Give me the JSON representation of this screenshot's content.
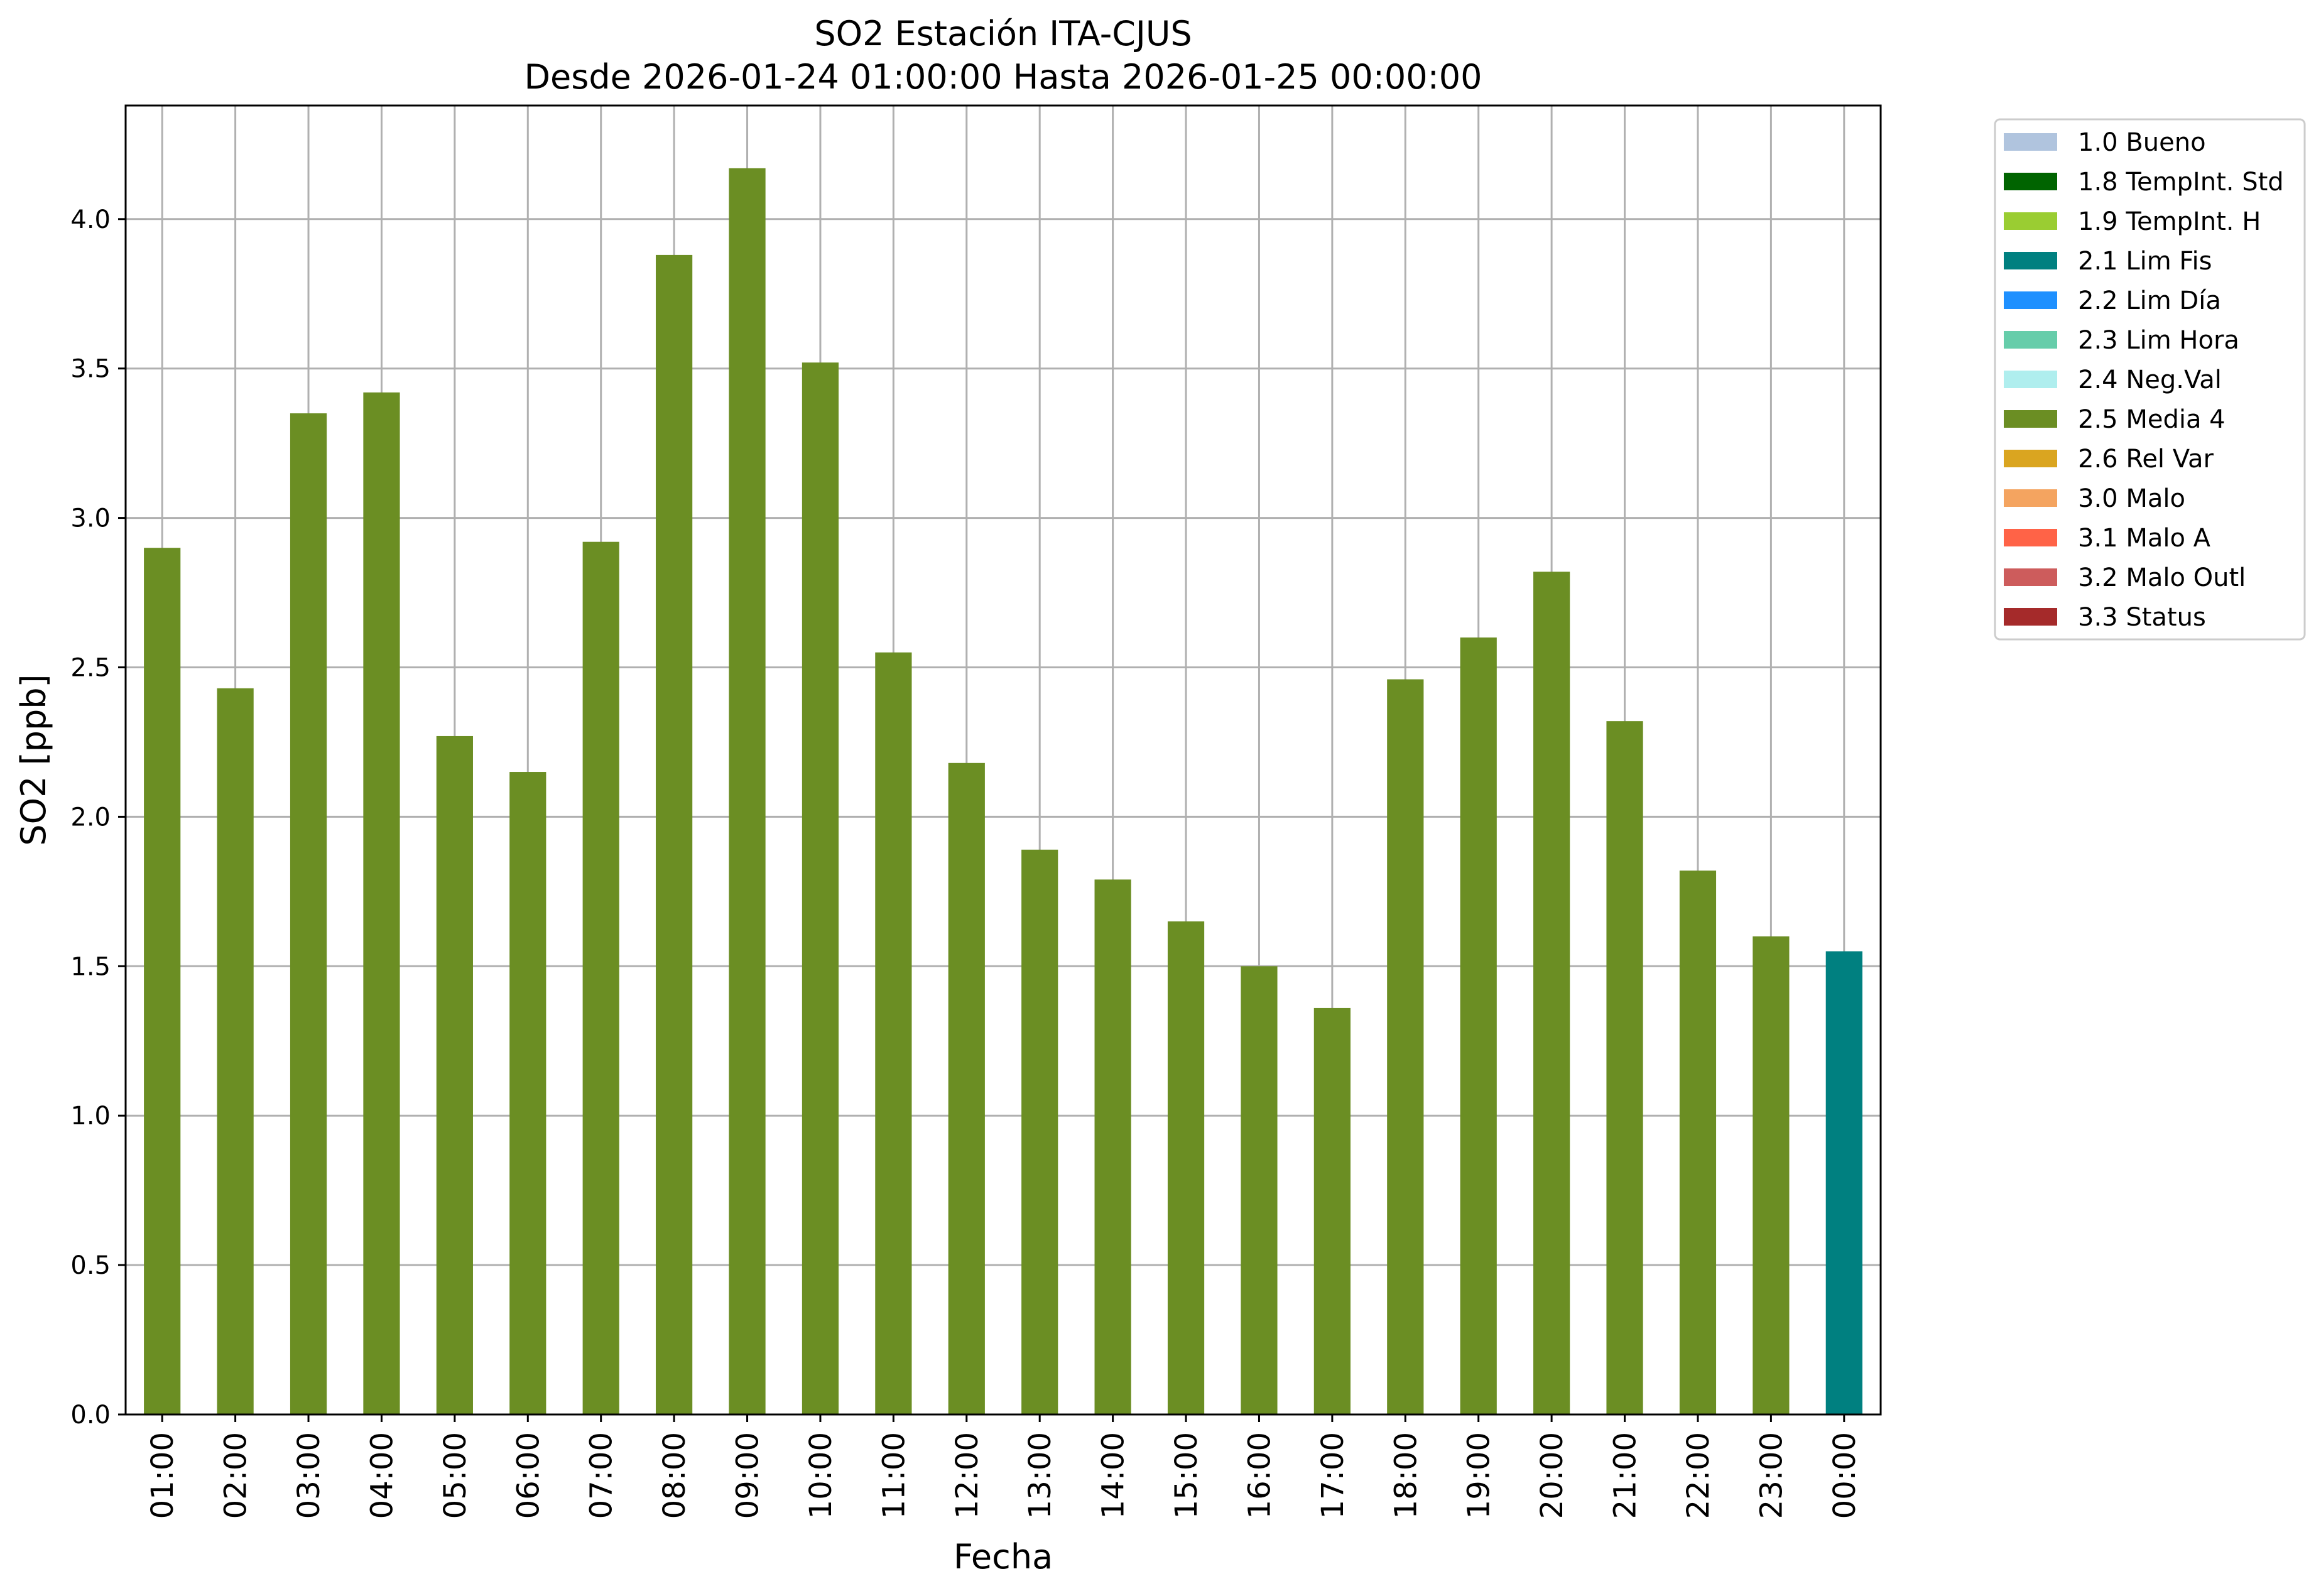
{
  "chart_data": {
    "type": "bar",
    "title": "SO2 Estación ITA-CJUS",
    "subtitle": "Desde 2026-01-24 01:00:00 Hasta 2026-01-25 00:00:00",
    "xlabel": "Fecha",
    "ylabel": "SO2 [ppb]",
    "ylim": [
      0,
      4.38
    ],
    "yticks": [
      "0.0",
      "0.5",
      "1.0",
      "1.5",
      "2.0",
      "2.5",
      "3.0",
      "3.5",
      "4.0"
    ],
    "grid": true,
    "legend_position": "outside-right-top",
    "categories": [
      "01:00",
      "02:00",
      "03:00",
      "04:00",
      "05:00",
      "06:00",
      "07:00",
      "08:00",
      "09:00",
      "10:00",
      "11:00",
      "12:00",
      "13:00",
      "14:00",
      "15:00",
      "16:00",
      "17:00",
      "18:00",
      "19:00",
      "20:00",
      "21:00",
      "22:00",
      "23:00",
      "00:00"
    ],
    "values": [
      2.9,
      2.43,
      3.35,
      3.42,
      2.27,
      2.15,
      2.92,
      3.88,
      4.17,
      3.52,
      2.55,
      2.18,
      1.89,
      1.79,
      1.65,
      1.5,
      1.36,
      2.46,
      2.6,
      2.82,
      2.32,
      1.82,
      1.6,
      1.55
    ],
    "flags": [
      "2.5 Media 4",
      "2.5 Media 4",
      "2.5 Media 4",
      "2.5 Media 4",
      "2.5 Media 4",
      "2.5 Media 4",
      "2.5 Media 4",
      "2.5 Media 4",
      "2.5 Media 4",
      "2.5 Media 4",
      "2.5 Media 4",
      "2.5 Media 4",
      "2.5 Media 4",
      "2.5 Media 4",
      "2.5 Media 4",
      "2.5 Media 4",
      "2.5 Media 4",
      "2.5 Media 4",
      "2.5 Media 4",
      "2.5 Media 4",
      "2.5 Media 4",
      "2.5 Media 4",
      "2.5 Media 4",
      "2.1 Lim Fis"
    ],
    "legend": [
      {
        "label": "1.0 Bueno",
        "color": "#b0c4de"
      },
      {
        "label": "1.8 TempInt. Std",
        "color": "#006400"
      },
      {
        "label": "1.9 TempInt. H",
        "color": "#9acd32"
      },
      {
        "label": "2.1 Lim Fis",
        "color": "#008080"
      },
      {
        "label": "2.2 Lim Día",
        "color": "#1e90ff"
      },
      {
        "label": "2.3 Lim Hora",
        "color": "#66cdaa"
      },
      {
        "label": "2.4 Neg.Val",
        "color": "#afeeee"
      },
      {
        "label": "2.5 Media 4",
        "color": "#6b8e23"
      },
      {
        "label": "2.6 Rel Var",
        "color": "#daa520"
      },
      {
        "label": "3.0 Malo",
        "color": "#f4a460"
      },
      {
        "label": "3.1 Malo A",
        "color": "#ff6347"
      },
      {
        "label": "3.2 Malo Outl",
        "color": "#cd5c5c"
      },
      {
        "label": "3.3 Status",
        "color": "#a52a2a"
      }
    ]
  }
}
